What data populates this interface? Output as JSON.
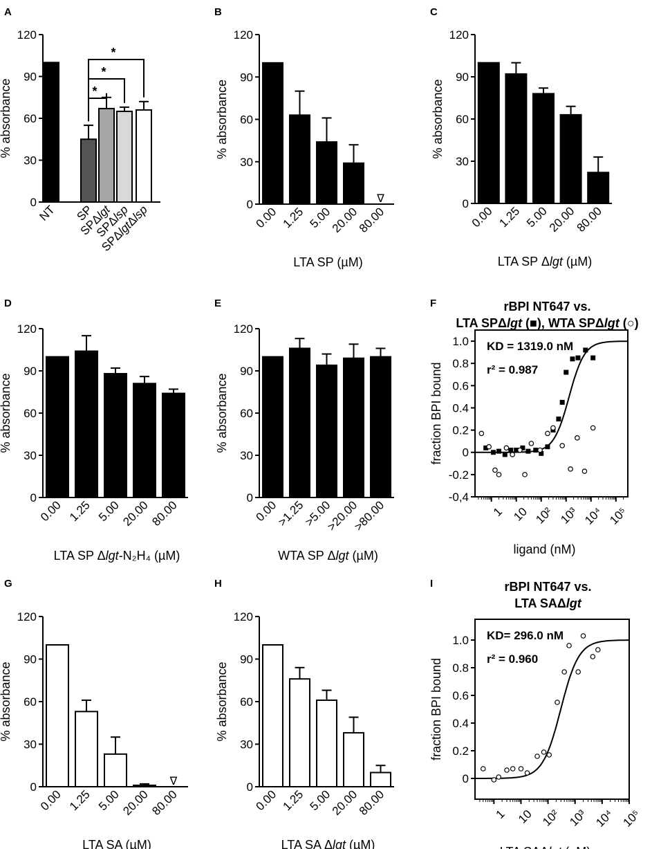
{
  "figure": {
    "panels": [
      "A",
      "B",
      "C",
      "D",
      "E",
      "F",
      "G",
      "H",
      "I"
    ]
  },
  "chart_data": [
    {
      "id": "A",
      "type": "bar",
      "panel_label": "A",
      "ylabel": "% absorbance",
      "xlabel": "",
      "ylim": [
        0,
        120
      ],
      "yticks": [
        "0",
        "30",
        "60",
        "90",
        "120"
      ],
      "categories": [
        "NT",
        "SP",
        "SPΔlgt",
        "SPΔlsp",
        "SPΔlgtΔlsp"
      ],
      "values": [
        100,
        45,
        67,
        65,
        66
      ],
      "errors": [
        0,
        10,
        8,
        3,
        6
      ],
      "bar_colors": [
        "#000000",
        "#555555",
        "#a6a6a6",
        "#d9d9d9",
        "#ffffff"
      ],
      "significance": [
        {
          "from": "SP",
          "to": "SPΔlgt",
          "label": "*"
        },
        {
          "from": "SP",
          "to": "SPΔlsp",
          "label": "*"
        },
        {
          "from": "SP",
          "to": "SPΔlgtΔlsp",
          "label": "*"
        }
      ]
    },
    {
      "id": "B",
      "type": "bar",
      "panel_label": "B",
      "ylabel": "% absorbance",
      "xlabel": "LTA SP (µM)",
      "ylim": [
        0,
        120
      ],
      "yticks": [
        "0",
        "30",
        "60",
        "90",
        "120"
      ],
      "categories": [
        "0.00",
        "1.25",
        "5.00",
        "20.00",
        "80.00"
      ],
      "values": [
        100,
        63,
        44,
        29,
        0
      ],
      "errors": [
        0,
        17,
        17,
        13,
        0
      ],
      "fill": "#000000",
      "markers": [
        {
          "category": "80.00",
          "symbol": "∇"
        }
      ]
    },
    {
      "id": "C",
      "type": "bar",
      "panel_label": "C",
      "ylabel": "% absorbance",
      "xlabel": "LTA SP Δlgt (µM)",
      "ylim": [
        0,
        120
      ],
      "yticks": [
        "0",
        "30",
        "60",
        "90",
        "120"
      ],
      "categories": [
        "0.00",
        "1.25",
        "5.00",
        "20.00",
        "80.00"
      ],
      "values": [
        100,
        92,
        78,
        63,
        22
      ],
      "errors": [
        0,
        8,
        4,
        6,
        11
      ],
      "fill": "#000000"
    },
    {
      "id": "D",
      "type": "bar",
      "panel_label": "D",
      "ylabel": "% absorbance",
      "xlabel": "LTA SP Δlgt-N₂H₄ (µM)",
      "ylim": [
        0,
        120
      ],
      "yticks": [
        "0",
        "30",
        "60",
        "90",
        "120"
      ],
      "categories": [
        "0.00",
        "1.25",
        "5.00",
        "20.00",
        "80.00"
      ],
      "values": [
        100,
        104,
        88,
        81,
        74
      ],
      "errors": [
        0,
        11,
        4,
        5,
        3
      ],
      "fill": "#000000"
    },
    {
      "id": "E",
      "type": "bar",
      "panel_label": "E",
      "ylabel": "% absorbance",
      "xlabel": "WTA SP Δlgt (µM)",
      "ylim": [
        0,
        120
      ],
      "yticks": [
        "0",
        "30",
        "60",
        "90",
        "120"
      ],
      "categories": [
        "0.00",
        ">1.25",
        ">5.00",
        ">20.00",
        ">80.00"
      ],
      "values": [
        100,
        106,
        94,
        99,
        100
      ],
      "errors": [
        0,
        7,
        8,
        10,
        6
      ],
      "fill": "#000000"
    },
    {
      "id": "F",
      "type": "scatter",
      "panel_label": "F",
      "title_lines": [
        "rBPI NT647 vs.",
        "LTA SPΔlgt (■), WTA SPΔlgt (○)"
      ],
      "ylabel": "fraction BPI bound",
      "xlabel": "ligand (nM)",
      "xscale": "log",
      "xlim": [
        0.22,
        300000
      ],
      "ylim": [
        -0.4,
        1.1
      ],
      "yticks": [
        "-0,4",
        "-0.2",
        "0",
        "0.2",
        "0.4",
        "0.6",
        "0.8",
        "1.0"
      ],
      "xticks": [
        "1",
        "10",
        "10²",
        "10³",
        "10⁴",
        "10⁵"
      ],
      "annotations": [
        "KD = 1319.0 nM",
        "r² = 0.987"
      ],
      "fit": {
        "kd_nM": 1319,
        "hill": 1.4,
        "top": 1.0,
        "bottom": 0.0
      },
      "series": [
        {
          "name": "LTA SPΔlgt",
          "marker": "square",
          "x": [
            0.6,
            1.2,
            2.0,
            3.5,
            6,
            10,
            18,
            30,
            60,
            100,
            180,
            300,
            500,
            700,
            1000,
            1800,
            3000,
            6000,
            12000
          ],
          "y": [
            0.04,
            0.0,
            0.01,
            -0.02,
            0.02,
            0.02,
            0.04,
            0.01,
            0.02,
            -0.01,
            0.05,
            0.2,
            0.3,
            0.45,
            0.72,
            0.84,
            0.85,
            0.92,
            0.85
          ]
        },
        {
          "name": "WTA SPΔlgt",
          "marker": "circle",
          "x": [
            0.4,
            0.8,
            1.4,
            2.0,
            4,
            7,
            14,
            22,
            40,
            90,
            180,
            300,
            700,
            1500,
            2800,
            5500,
            12000
          ],
          "y": [
            0.17,
            0.05,
            -0.16,
            -0.2,
            0.04,
            -0.02,
            0.02,
            -0.2,
            0.08,
            0.02,
            0.17,
            0.22,
            0.06,
            -0.15,
            0.13,
            -0.17,
            0.22
          ]
        }
      ]
    },
    {
      "id": "G",
      "type": "bar",
      "panel_label": "G",
      "ylabel": "% absorbance",
      "xlabel": "LTA SA (µM)",
      "ylim": [
        0,
        120
      ],
      "yticks": [
        "0",
        "30",
        "60",
        "90",
        "120"
      ],
      "categories": [
        "0.00",
        "1.25",
        "5.00",
        "20.00",
        "80.00"
      ],
      "values": [
        100,
        53,
        23,
        1,
        0
      ],
      "errors": [
        0,
        8,
        12,
        1,
        0
      ],
      "fill": "#ffffff",
      "markers": [
        {
          "category": "80.00",
          "symbol": "∇"
        }
      ]
    },
    {
      "id": "H",
      "type": "bar",
      "panel_label": "H",
      "ylabel": "% absorbance",
      "xlabel": "LTA SA Δlgt (µM)",
      "ylim": [
        0,
        120
      ],
      "yticks": [
        "0",
        "30",
        "60",
        "90",
        "120"
      ],
      "categories": [
        "0.00",
        "1.25",
        "5.00",
        "20.00",
        "80.00"
      ],
      "values": [
        100,
        76,
        61,
        38,
        10
      ],
      "errors": [
        0,
        8,
        7,
        11,
        5
      ],
      "fill": "#ffffff"
    },
    {
      "id": "I",
      "type": "scatter",
      "panel_label": "I",
      "title_lines": [
        "rBPI NT647 vs.",
        "LTA SAΔlgt"
      ],
      "ylabel": "fraction BPI bound",
      "xlabel": "LTA SAΔlgt (nM)",
      "xscale": "log",
      "xlim": [
        0.2,
        100000
      ],
      "ylim": [
        -0.15,
        1.15
      ],
      "yticks": [
        "0",
        "0.2",
        "0.4",
        "0.6",
        "0.8",
        "1.0"
      ],
      "xticks": [
        "1",
        "10",
        "10²",
        "10³",
        "10⁴",
        "10⁵"
      ],
      "annotations": [
        "KD= 296.0 nM",
        "r² = 0.960"
      ],
      "fit": {
        "kd_nM": 296,
        "hill": 1.3,
        "top": 1.0,
        "bottom": 0.0
      },
      "series": [
        {
          "name": "LTA SAΔlgt",
          "marker": "circle",
          "x": [
            0.4,
            1.0,
            1.5,
            3,
            5,
            10,
            17,
            40,
            70,
            110,
            220,
            400,
            600,
            1300,
            2000,
            4500,
            7000
          ],
          "y": [
            0.07,
            -0.01,
            0.01,
            0.06,
            0.07,
            0.07,
            0.04,
            0.16,
            0.19,
            0.17,
            0.55,
            0.77,
            0.96,
            0.77,
            1.03,
            0.88,
            0.93
          ]
        }
      ]
    }
  ]
}
